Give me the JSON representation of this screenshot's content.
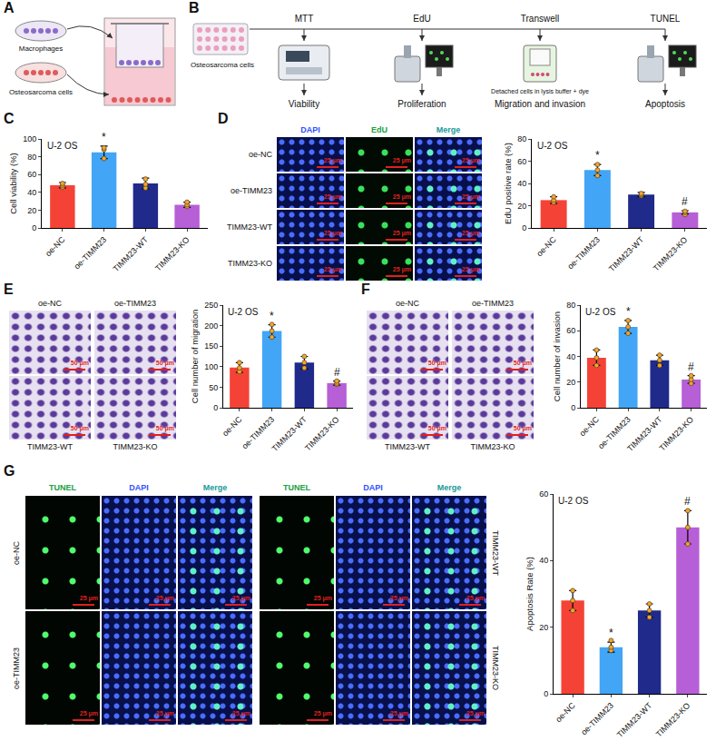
{
  "panel_labels": [
    "A",
    "B",
    "C",
    "D",
    "E",
    "F",
    "G"
  ],
  "diagram_A": {
    "inputs": [
      "Macrophages",
      "Osteosarcoma cells"
    ]
  },
  "diagram_B": {
    "source": "Osteosarcoma cells",
    "steps": [
      {
        "name": "MTT",
        "readout": "Viability"
      },
      {
        "name": "EdU",
        "readout": "Proliferation"
      },
      {
        "name": "Transwell",
        "readout": "Migration and invasion",
        "note": "Detached cells in lysis buffer + dye"
      },
      {
        "name": "TUNEL",
        "readout": "Apoptosis"
      }
    ]
  },
  "images": {
    "D": {
      "columns": [
        "DAPI",
        "EdU",
        "Merge"
      ],
      "rows": [
        "oe-NC",
        "oe-TIMM23",
        "TIMM23-WT",
        "TIMM23-KO"
      ],
      "scale_bar": "25 μm"
    },
    "E": {
      "top": [
        "oe-NC",
        "oe-TIMM23"
      ],
      "bottom": [
        "TIMM23-WT",
        "TIMM23-KO"
      ],
      "scale_bar": "50 μm"
    },
    "F": {
      "top": [
        "oe-NC",
        "oe-TIMM23"
      ],
      "bottom": [
        "TIMM23-WT",
        "TIMM23-KO"
      ],
      "scale_bar": "50 μm"
    },
    "G": {
      "columns": [
        "TUNEL",
        "DAPI",
        "Merge"
      ],
      "left_rows": [
        "oe-NC",
        "oe-TIMM23"
      ],
      "right_rows": [
        "TIMM23-WT",
        "TIMM23-KO"
      ],
      "scale_bar": "25 μm"
    }
  },
  "chart_data": [
    {
      "type": "bar",
      "title": "U-2 OS",
      "ylabel": "Cell viability (%)",
      "categories": [
        "oe-NC",
        "oe-TIMM23",
        "TIMM23-WT",
        "TIMM23-KO"
      ],
      "values": [
        48,
        85,
        50,
        26
      ],
      "errors": [
        3,
        7,
        6,
        3
      ],
      "points": [
        [
          46,
          48,
          50
        ],
        [
          78,
          88,
          90
        ],
        [
          45,
          49,
          55
        ],
        [
          24,
          26,
          29
        ]
      ],
      "significance": [
        null,
        "*",
        null,
        null
      ],
      "colors": [
        "#f44336",
        "#42a5f5",
        "#1f2a8a",
        "#b65fd6"
      ],
      "ylim": [
        0,
        100
      ],
      "yticks": [
        0,
        20,
        40,
        60,
        80,
        100
      ],
      "grid": false
    },
    {
      "type": "bar",
      "title": "U-2 OS",
      "ylabel": "EdU positive rate (%)",
      "categories": [
        "oe-NC",
        "oe-TIMM23",
        "TIMM23-WT",
        "TIMM23-KO"
      ],
      "values": [
        25,
        52,
        30,
        14
      ],
      "errors": [
        3,
        5,
        2,
        1.5
      ],
      "points": [
        [
          23,
          25,
          28
        ],
        [
          47,
          52,
          57
        ],
        [
          29,
          30,
          31
        ],
        [
          12,
          14,
          15
        ]
      ],
      "significance": [
        null,
        "*",
        null,
        "#"
      ],
      "colors": [
        "#f44336",
        "#42a5f5",
        "#1f2a8a",
        "#b65fd6"
      ],
      "ylim": [
        0,
        80
      ],
      "yticks": [
        0,
        20,
        40,
        60,
        80
      ],
      "grid": false
    },
    {
      "type": "bar",
      "title": "U-2 OS",
      "ylabel": "Cell number of migration",
      "categories": [
        "oe-NC",
        "oe-TIMM23",
        "TIMM23-WT",
        "TIMM23-KO"
      ],
      "values": [
        98,
        187,
        110,
        60
      ],
      "errors": [
        12,
        15,
        15,
        5
      ],
      "points": [
        [
          88,
          97,
          110
        ],
        [
          172,
          187,
          203
        ],
        [
          97,
          110,
          125
        ],
        [
          57,
          60,
          65
        ]
      ],
      "significance": [
        null,
        "*",
        null,
        "#"
      ],
      "colors": [
        "#f44336",
        "#42a5f5",
        "#1f2a8a",
        "#b65fd6"
      ],
      "ylim": [
        0,
        250
      ],
      "yticks": [
        0,
        50,
        100,
        150,
        200,
        250
      ],
      "grid": false
    },
    {
      "type": "bar",
      "title": "U-2 OS",
      "ylabel": "Cell number of invasion",
      "categories": [
        "oe-NC",
        "oe-TIMM23",
        "TIMM23-WT",
        "TIMM23-KO"
      ],
      "values": [
        39,
        63,
        37,
        22
      ],
      "errors": [
        6,
        5,
        4,
        3
      ],
      "points": [
        [
          33,
          39,
          45
        ],
        [
          58,
          63,
          68
        ],
        [
          33,
          37,
          41
        ],
        [
          19,
          22,
          25
        ]
      ],
      "significance": [
        null,
        "*",
        null,
        "#"
      ],
      "colors": [
        "#f44336",
        "#42a5f5",
        "#1f2a8a",
        "#b65fd6"
      ],
      "ylim": [
        0,
        80
      ],
      "yticks": [
        0,
        20,
        40,
        60,
        80
      ],
      "grid": false
    },
    {
      "type": "bar",
      "title": "U-2 OS",
      "ylabel": "Apoptosis Rate (%)",
      "categories": [
        "oe-NC",
        "oe-TIMM23",
        "TIMM23-WT",
        "TIMM23-KO"
      ],
      "values": [
        28,
        14,
        25,
        50
      ],
      "errors": [
        3,
        1.5,
        2,
        5
      ],
      "points": [
        [
          25,
          28,
          31
        ],
        [
          13,
          14,
          16
        ],
        [
          23,
          25,
          27
        ],
        [
          45,
          50,
          55
        ]
      ],
      "significance": [
        null,
        "*",
        null,
        "#"
      ],
      "colors": [
        "#f44336",
        "#42a5f5",
        "#1f2a8a",
        "#b65fd6"
      ],
      "ylim": [
        0,
        60
      ],
      "yticks": [
        0,
        20,
        40,
        60
      ],
      "grid": false
    }
  ]
}
